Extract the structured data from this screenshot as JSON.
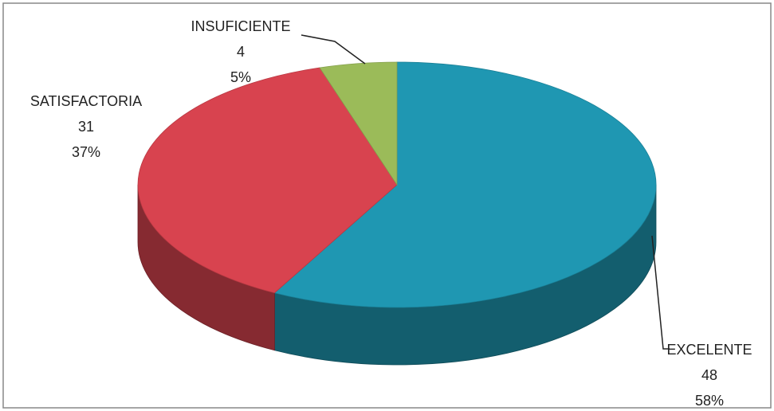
{
  "chart_data": {
    "type": "pie",
    "categories": [
      "EXCELENTE",
      "SATISFACTORIA",
      "INSUFICIENTE"
    ],
    "values": [
      48,
      31,
      4
    ],
    "percent_labels": [
      "58%",
      "37%",
      "5%"
    ],
    "colors": [
      "#1f97b2",
      "#d8434f",
      "#9bbb59"
    ]
  }
}
